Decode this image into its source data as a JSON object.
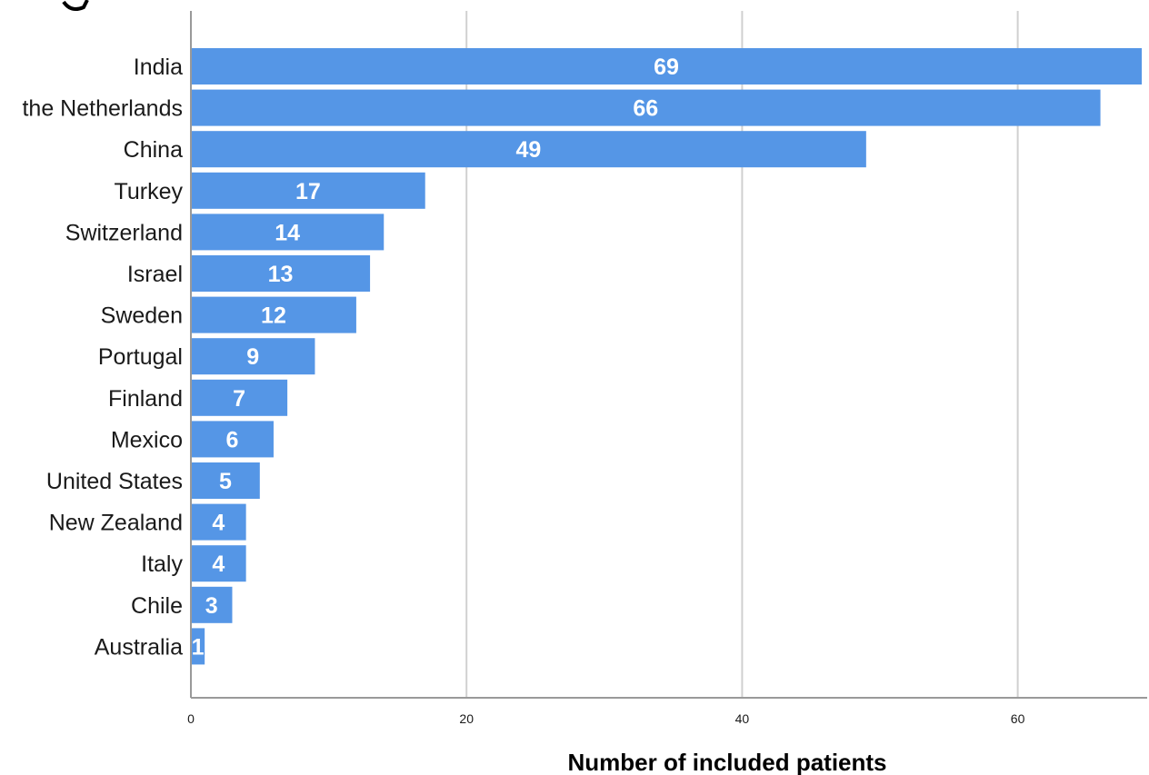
{
  "chart_data": {
    "type": "bar",
    "orientation": "horizontal",
    "categories": [
      "India",
      "the Netherlands",
      "China",
      "Turkey",
      "Switzerland",
      "Israel",
      "Sweden",
      "Portugal",
      "Finland",
      "Mexico",
      "United States",
      "New Zealand",
      "Italy",
      "Chile",
      "Australia"
    ],
    "values": [
      69,
      66,
      49,
      17,
      14,
      13,
      12,
      9,
      7,
      6,
      5,
      4,
      4,
      3,
      1
    ],
    "xlabel": "Number of included patients",
    "ylabel": "",
    "xlim": [
      0,
      70
    ],
    "xticks": [
      "0",
      "20",
      "40",
      "60"
    ],
    "grid": "vertical",
    "legend": "none",
    "bar_color": "#5596e6",
    "data_labels": "inside-bar-center"
  }
}
